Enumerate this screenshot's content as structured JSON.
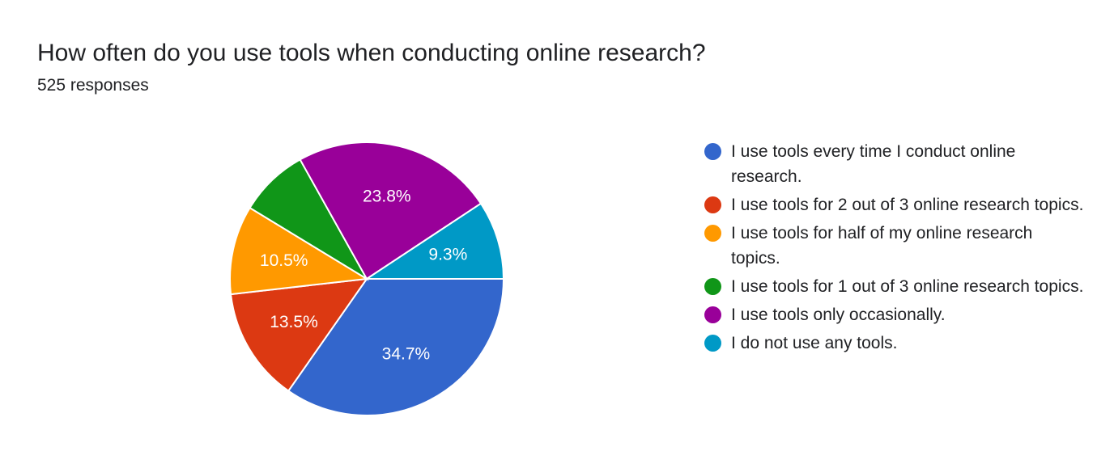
{
  "header": {
    "title": "How often do you use tools when conducting online research?",
    "responses": "525 responses"
  },
  "chart_data": {
    "type": "pie",
    "title": "How often do you use tools when conducting online research?",
    "categories": [
      "I use tools every time I conduct online research.",
      "I use tools for 2 out of 3 online research topics.",
      "I use tools for half of my online research topics.",
      "I use tools for 1 out of 3 online research topics.",
      "I use tools only occasionally.",
      "I do not use any tools."
    ],
    "values": [
      34.7,
      13.5,
      10.5,
      8.2,
      23.8,
      9.3
    ],
    "labels": [
      "34.7%",
      "13.5%",
      "10.5%",
      "",
      "23.8%",
      "9.3%"
    ],
    "colors": [
      "#3366cc",
      "#dc3912",
      "#ff9900",
      "#109618",
      "#990099",
      "#0099c6"
    ],
    "legend_position": "right"
  },
  "legend": {
    "items": [
      {
        "label": "I use tools every time I conduct online research.",
        "color": "#3366cc"
      },
      {
        "label": "I use tools for 2 out of 3 online research topics.",
        "color": "#dc3912"
      },
      {
        "label": "I use tools for half of my online research topics.",
        "color": "#ff9900"
      },
      {
        "label": "I use tools for 1 out of 3 online research topics.",
        "color": "#109618"
      },
      {
        "label": "I use tools only occasionally.",
        "color": "#990099"
      },
      {
        "label": "I do not use any tools.",
        "color": "#0099c6"
      }
    ]
  }
}
